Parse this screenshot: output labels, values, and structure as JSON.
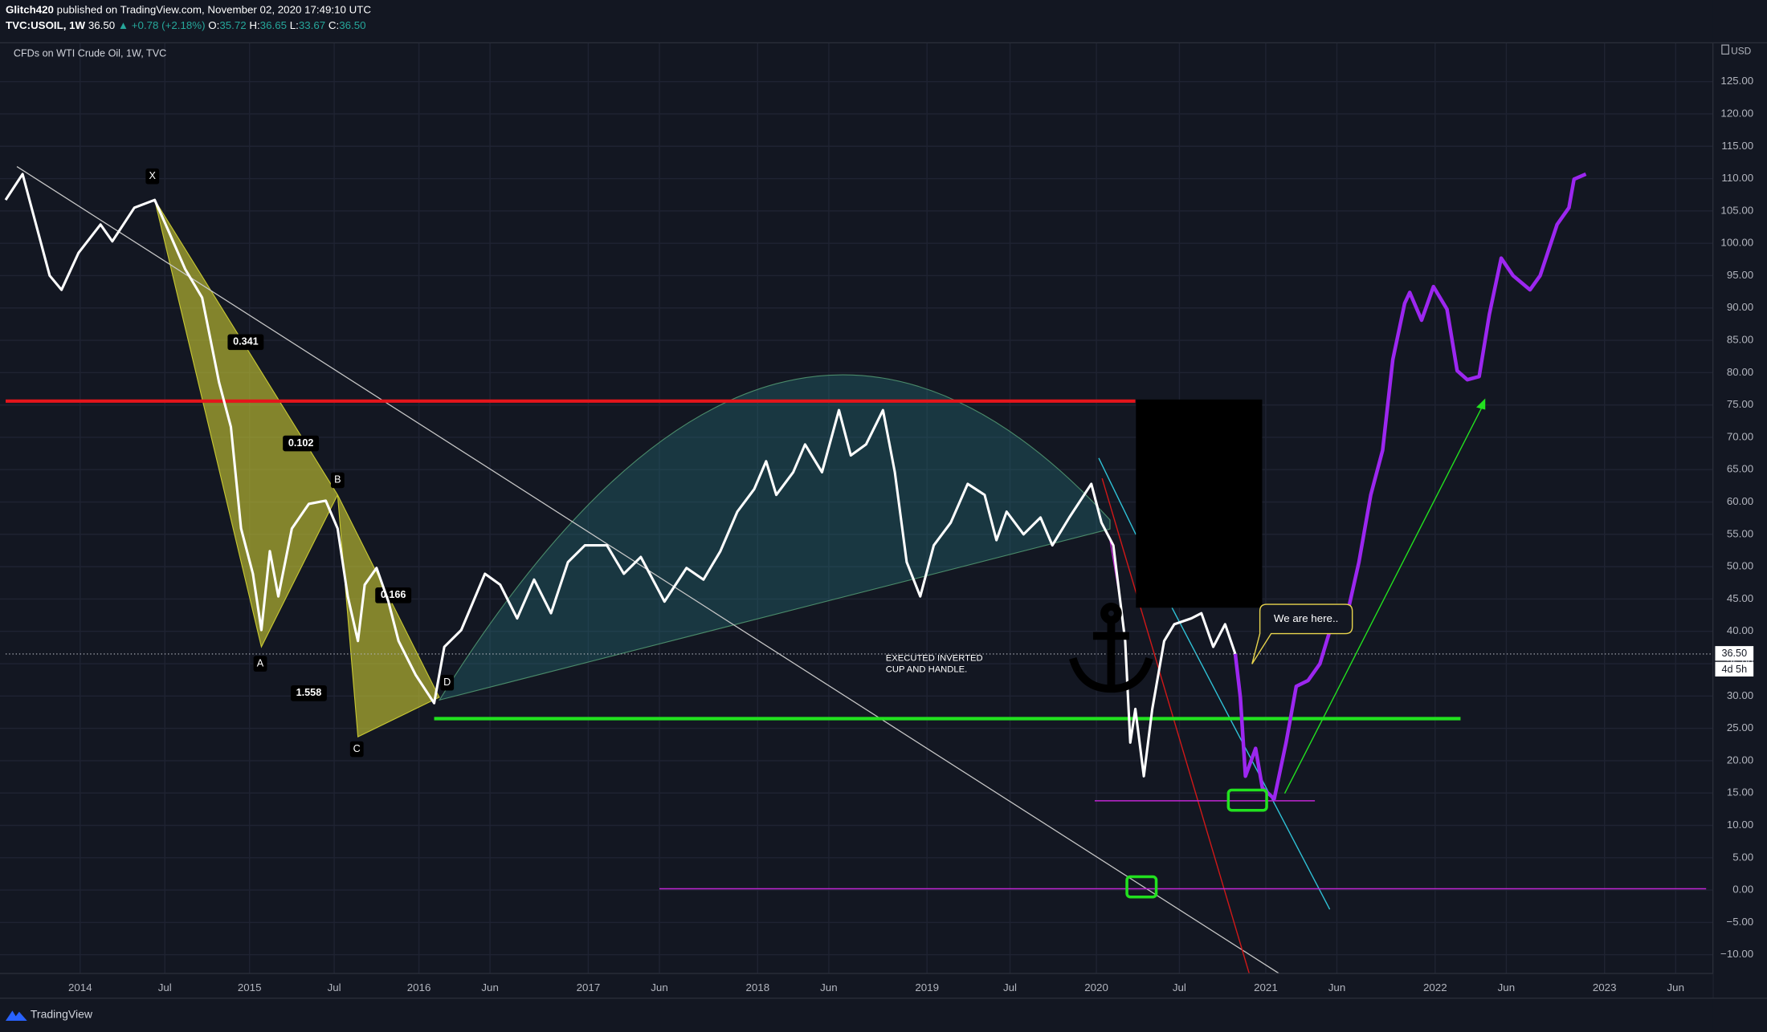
{
  "header": {
    "author": "Glitch420",
    "published": "published on TradingView.com, November 02, 2020 17:49:10 UTC",
    "symbol": "TVC:USOIL, 1W",
    "last": "36.50",
    "change": "▲ +0.78 (+2.18%)",
    "ohlc": [
      {
        "label": "O:",
        "value": "35.72"
      },
      {
        "label": "H:",
        "value": "36.65"
      },
      {
        "label": "L:",
        "value": "33.67"
      },
      {
        "label": "C:",
        "value": "36.50"
      }
    ],
    "instrument": "CFDs on WTI Crude Oil, 1W, TVC",
    "currency": "USD"
  },
  "chart_data": {
    "type": "line",
    "xlim": [
      2013.56,
      2023.64
    ],
    "ylim": [
      -12.9,
      131
    ],
    "grid": true,
    "xticks": [
      2014,
      {
        "value": 2014.5,
        "label": "Jul"
      },
      2015,
      {
        "value": 2015.5,
        "label": "Jul"
      },
      2016,
      {
        "value": 2016.42,
        "label": "Jun"
      },
      2017,
      {
        "value": 2017.42,
        "label": "Jun"
      },
      2018,
      {
        "value": 2018.42,
        "label": "Jun"
      },
      2019,
      {
        "value": 2019.49,
        "label": "Jul"
      },
      2020,
      {
        "value": 2020.49,
        "label": "Jul"
      },
      2021,
      {
        "value": 2021.42,
        "label": "Jun"
      },
      2022,
      {
        "value": 2022.42,
        "label": "Jun"
      },
      2023,
      {
        "value": 2023.42,
        "label": "Jun"
      }
    ],
    "yticks": [
      {
        "value": -10,
        "label": "−10.00"
      },
      {
        "value": -5,
        "label": "−5.00"
      },
      {
        "value": 0,
        "label": "0.00"
      },
      {
        "value": 5,
        "label": "5.00"
      },
      {
        "value": 10,
        "label": "10.00"
      },
      {
        "value": 15,
        "label": "15.00"
      },
      {
        "value": 20,
        "label": "20.00"
      },
      {
        "value": 25,
        "label": "25.00"
      },
      {
        "value": 30,
        "label": "30.00"
      },
      {
        "value": 35,
        "label": "35.00"
      },
      {
        "value": 40,
        "label": "40.00"
      },
      {
        "value": 45,
        "label": "45.00"
      },
      {
        "value": 50,
        "label": "50.00"
      },
      {
        "value": 55,
        "label": "55.00"
      },
      {
        "value": 60,
        "label": "60.00"
      },
      {
        "value": 65,
        "label": "65.00"
      },
      {
        "value": 70,
        "label": "70.00"
      },
      {
        "value": 75,
        "label": "75.00"
      },
      {
        "value": 80,
        "label": "80.00"
      },
      {
        "value": 85,
        "label": "85.00"
      },
      {
        "value": 90,
        "label": "90.00"
      },
      {
        "value": 95,
        "label": "95.00"
      },
      {
        "value": 100,
        "label": "100.00"
      },
      {
        "value": 105,
        "label": "105.00"
      },
      {
        "value": 110,
        "label": "110.00"
      },
      {
        "value": 115,
        "label": "115.00"
      },
      {
        "value": 120,
        "label": "120.00"
      },
      {
        "value": 125,
        "label": "125.00"
      }
    ],
    "series": [
      {
        "color": "#ffffff",
        "x": [
          2013.56,
          2013.66,
          2013.82,
          2013.89,
          2013.99,
          2014.12,
          2014.19,
          2014.32,
          2014.44,
          2014.52,
          2014.62,
          2014.72,
          2014.82,
          2014.89,
          2014.95,
          2015.02,
          2015.07,
          2015.12,
          2015.17,
          2015.25,
          2015.35,
          2015.45,
          2015.52,
          2015.58,
          2015.64,
          2015.68,
          2015.75,
          2015.82,
          2015.88,
          2015.98,
          2016.09,
          2016.15,
          2016.25,
          2016.39,
          2016.48,
          2016.58,
          2016.68,
          2016.78,
          2016.88,
          2016.98,
          2017.11,
          2017.21,
          2017.31,
          2017.45,
          2017.58,
          2017.68,
          2017.78,
          2017.88,
          2017.98,
          2018.05,
          2018.11,
          2018.21,
          2018.28,
          2018.38,
          2018.48,
          2018.55,
          2018.64,
          2018.74,
          2018.81,
          2018.88,
          2018.96,
          2019.04,
          2019.14,
          2019.24,
          2019.34,
          2019.41,
          2019.47,
          2019.57,
          2019.67,
          2019.74,
          2019.84,
          2019.97,
          2020.03,
          2020.1,
          2020.17,
          2020.2,
          2020.23,
          2020.28,
          2020.33,
          2020.4,
          2020.46,
          2020.56,
          2020.62,
          2020.69,
          2020.76,
          2020.82
        ],
        "values": [
          106.7,
          110.7,
          95,
          92.8,
          98.5,
          102.9,
          100.3,
          105.5,
          106.7,
          102,
          96,
          91.6,
          78.5,
          71.6,
          55.9,
          48.9,
          40.2,
          52.4,
          45.4,
          55.9,
          59.7,
          60.2,
          55.9,
          45.4,
          38.5,
          47.2,
          49.8,
          44.6,
          38.5,
          33.3,
          28.9,
          37.6,
          40.2,
          48.9,
          47.2,
          42,
          48,
          42.8,
          50.7,
          53.3,
          53.3,
          48.9,
          51.5,
          44.6,
          49.8,
          48,
          52.4,
          58.5,
          62,
          66.3,
          61.1,
          64.6,
          68.9,
          64.6,
          74.2,
          67.2,
          68.9,
          74.2,
          64.6,
          50.7,
          45.4,
          53.3,
          56.8,
          62.8,
          61.1,
          54.1,
          58.5,
          55,
          57.6,
          53.3,
          57.6,
          62.8,
          56.8,
          53.3,
          38.5,
          22.8,
          28,
          17.6,
          28,
          38.5,
          41.1,
          42,
          42.8,
          37.6,
          41.1,
          36.5
        ]
      },
      {
        "color": "#9c27f0",
        "x": [
          2020.82,
          2020.85,
          2020.88,
          2020.94,
          2020.98,
          2021.05,
          2021.12,
          2021.18,
          2021.25,
          2021.32,
          2021.39,
          2021.49,
          2021.55,
          2021.62,
          2021.69,
          2021.75,
          2021.82,
          2021.85,
          2021.92,
          2021.99,
          2022.07,
          2022.13,
          2022.19,
          2022.26,
          2022.32,
          2022.39,
          2022.46,
          2022.56,
          2022.62,
          2022.72,
          2022.79,
          2022.82,
          2022.89
        ],
        "values": [
          36.5,
          29.8,
          17.6,
          21.9,
          15.8,
          14.1,
          22.8,
          31.5,
          32.4,
          35,
          41.1,
          43.7,
          50.7,
          61.1,
          68,
          82,
          90.7,
          92.4,
          88.1,
          93.3,
          89.8,
          80.3,
          78.9,
          79.4,
          89,
          97.7,
          95,
          92.8,
          95,
          102.9,
          105.5,
          109.9,
          110.7
        ]
      }
    ],
    "levels": [
      {
        "y": 75.6,
        "x": [
          2013.56,
          2020.23
        ],
        "color": "#e5151b"
      },
      {
        "y": 26.5,
        "x": [
          2016.09,
          2022.15
        ],
        "color": "#22e11f"
      },
      {
        "y": 0.2,
        "x": [
          2017.42,
          2023.6
        ],
        "color": "#c026d3"
      },
      {
        "y": 13.8,
        "x": [
          2019.99,
          2021.29
        ],
        "color": "#c026d3"
      }
    ],
    "last_price": {
      "value": 36.5,
      "label": "36.50"
    },
    "countdown": "4d 5h",
    "pattern": {
      "color": "#c8c832",
      "points": [
        {
          "label": "X",
          "x": 2014.44,
          "y": 106.7
        },
        {
          "label": "A",
          "x": 2015.07,
          "y": 37.6
        },
        {
          "label": "B",
          "x": 2015.52,
          "y": 61.1
        },
        {
          "label": "C",
          "x": 2015.64,
          "y": 23.7
        },
        {
          "label": "D",
          "x": 2016.12,
          "y": 29.8
        }
      ],
      "ratios": [
        "0.341",
        "0.102",
        "1.558",
        "0.166"
      ]
    },
    "annotations": {
      "cup_note": [
        "EXECUTED INVERTED",
        "CUP AND HANDLE."
      ],
      "callout": "We are here.."
    }
  },
  "footer": {
    "brand": "TradingView"
  }
}
